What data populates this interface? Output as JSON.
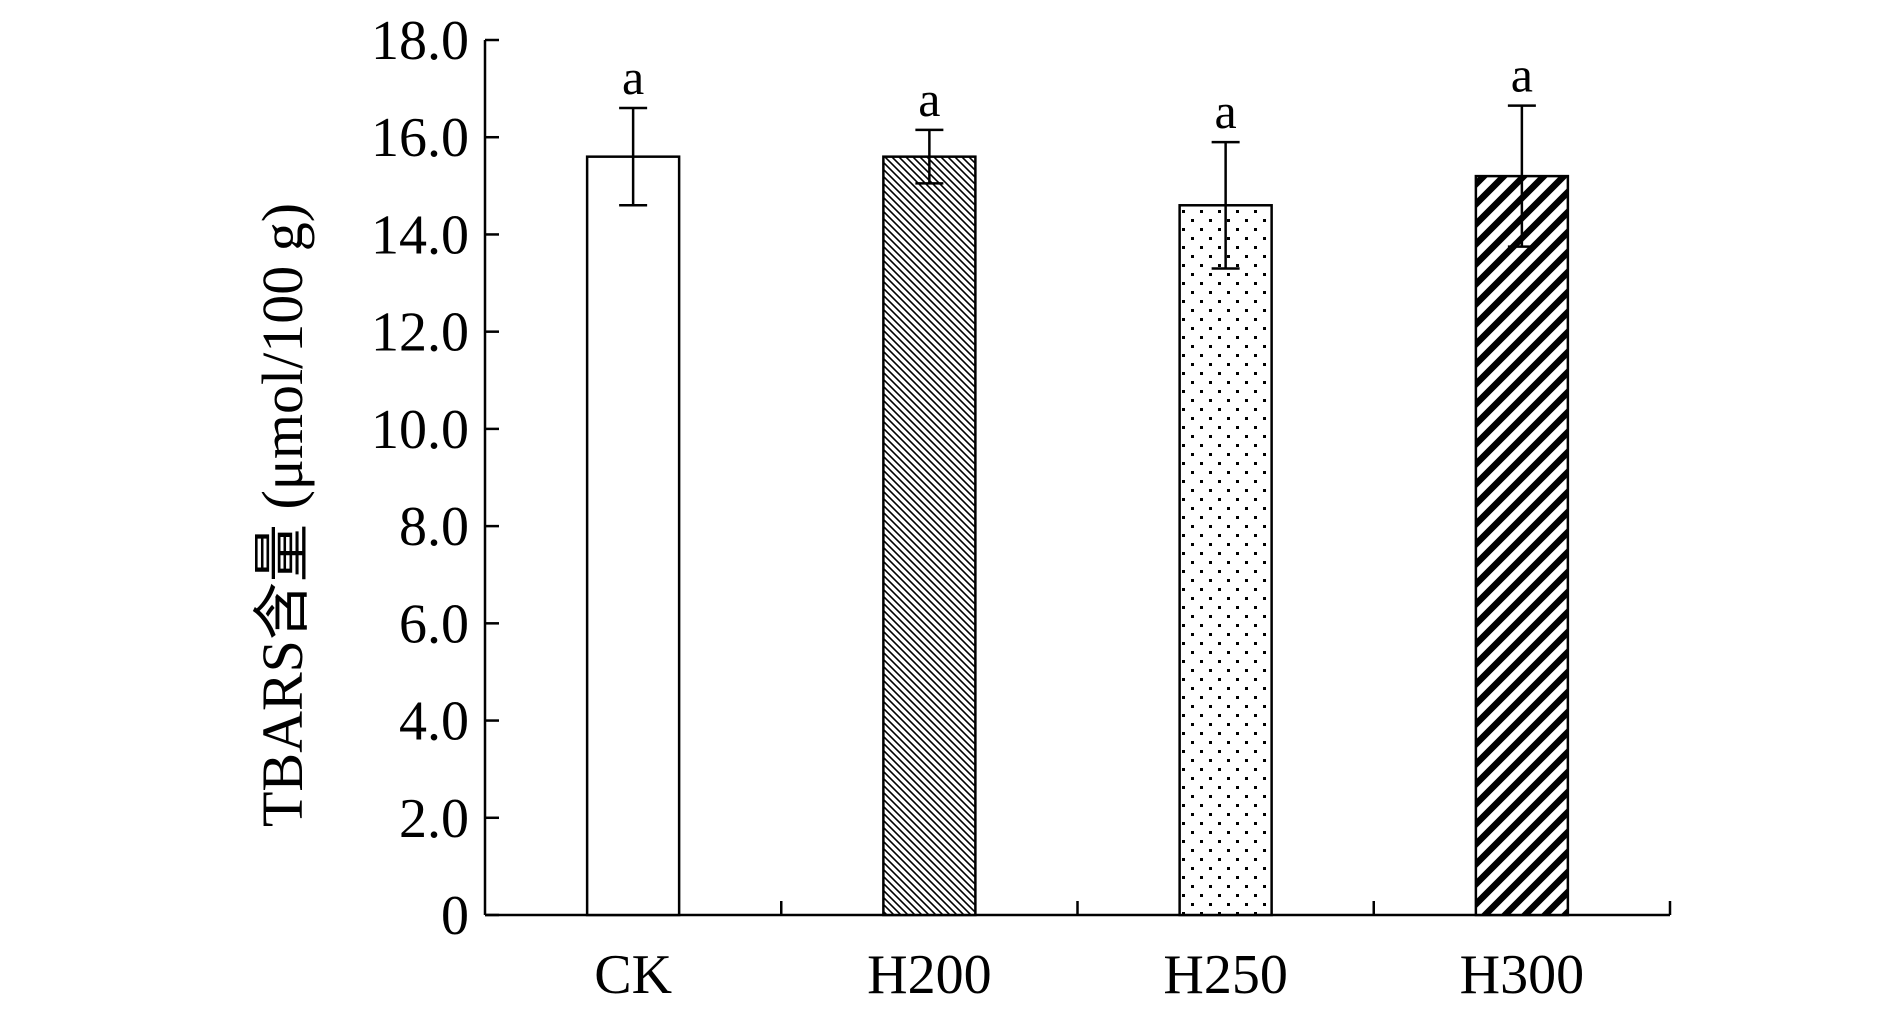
{
  "chart_data": {
    "type": "bar",
    "categories": [
      "CK",
      "H200",
      "H250",
      "H300"
    ],
    "values": [
      15.6,
      15.6,
      14.6,
      15.2
    ],
    "errors": [
      1.0,
      0.55,
      1.3,
      1.45
    ],
    "significance": [
      "a",
      "a",
      "a",
      "a"
    ],
    "bar_patterns": [
      "none",
      "dense-diagonal-hatch",
      "dots",
      "bold-diagonal-stripes"
    ],
    "title": "",
    "xlabel": "",
    "ylabel": "TBARS含量 (μmol/100 g)",
    "ylim": [
      0,
      18
    ],
    "yticks": [
      0,
      2,
      4,
      6,
      8,
      10,
      12,
      14,
      16,
      18
    ],
    "ytick_labels": [
      "0",
      "2.0",
      "4.0",
      "6.0",
      "8.0",
      "10.0",
      "12.0",
      "14.0",
      "16.0",
      "18.0"
    ],
    "grid": false,
    "legend": "none",
    "colors": {
      "bar_outline": "#000000",
      "bar_fill": "#ffffff",
      "pattern": "#000000"
    }
  }
}
